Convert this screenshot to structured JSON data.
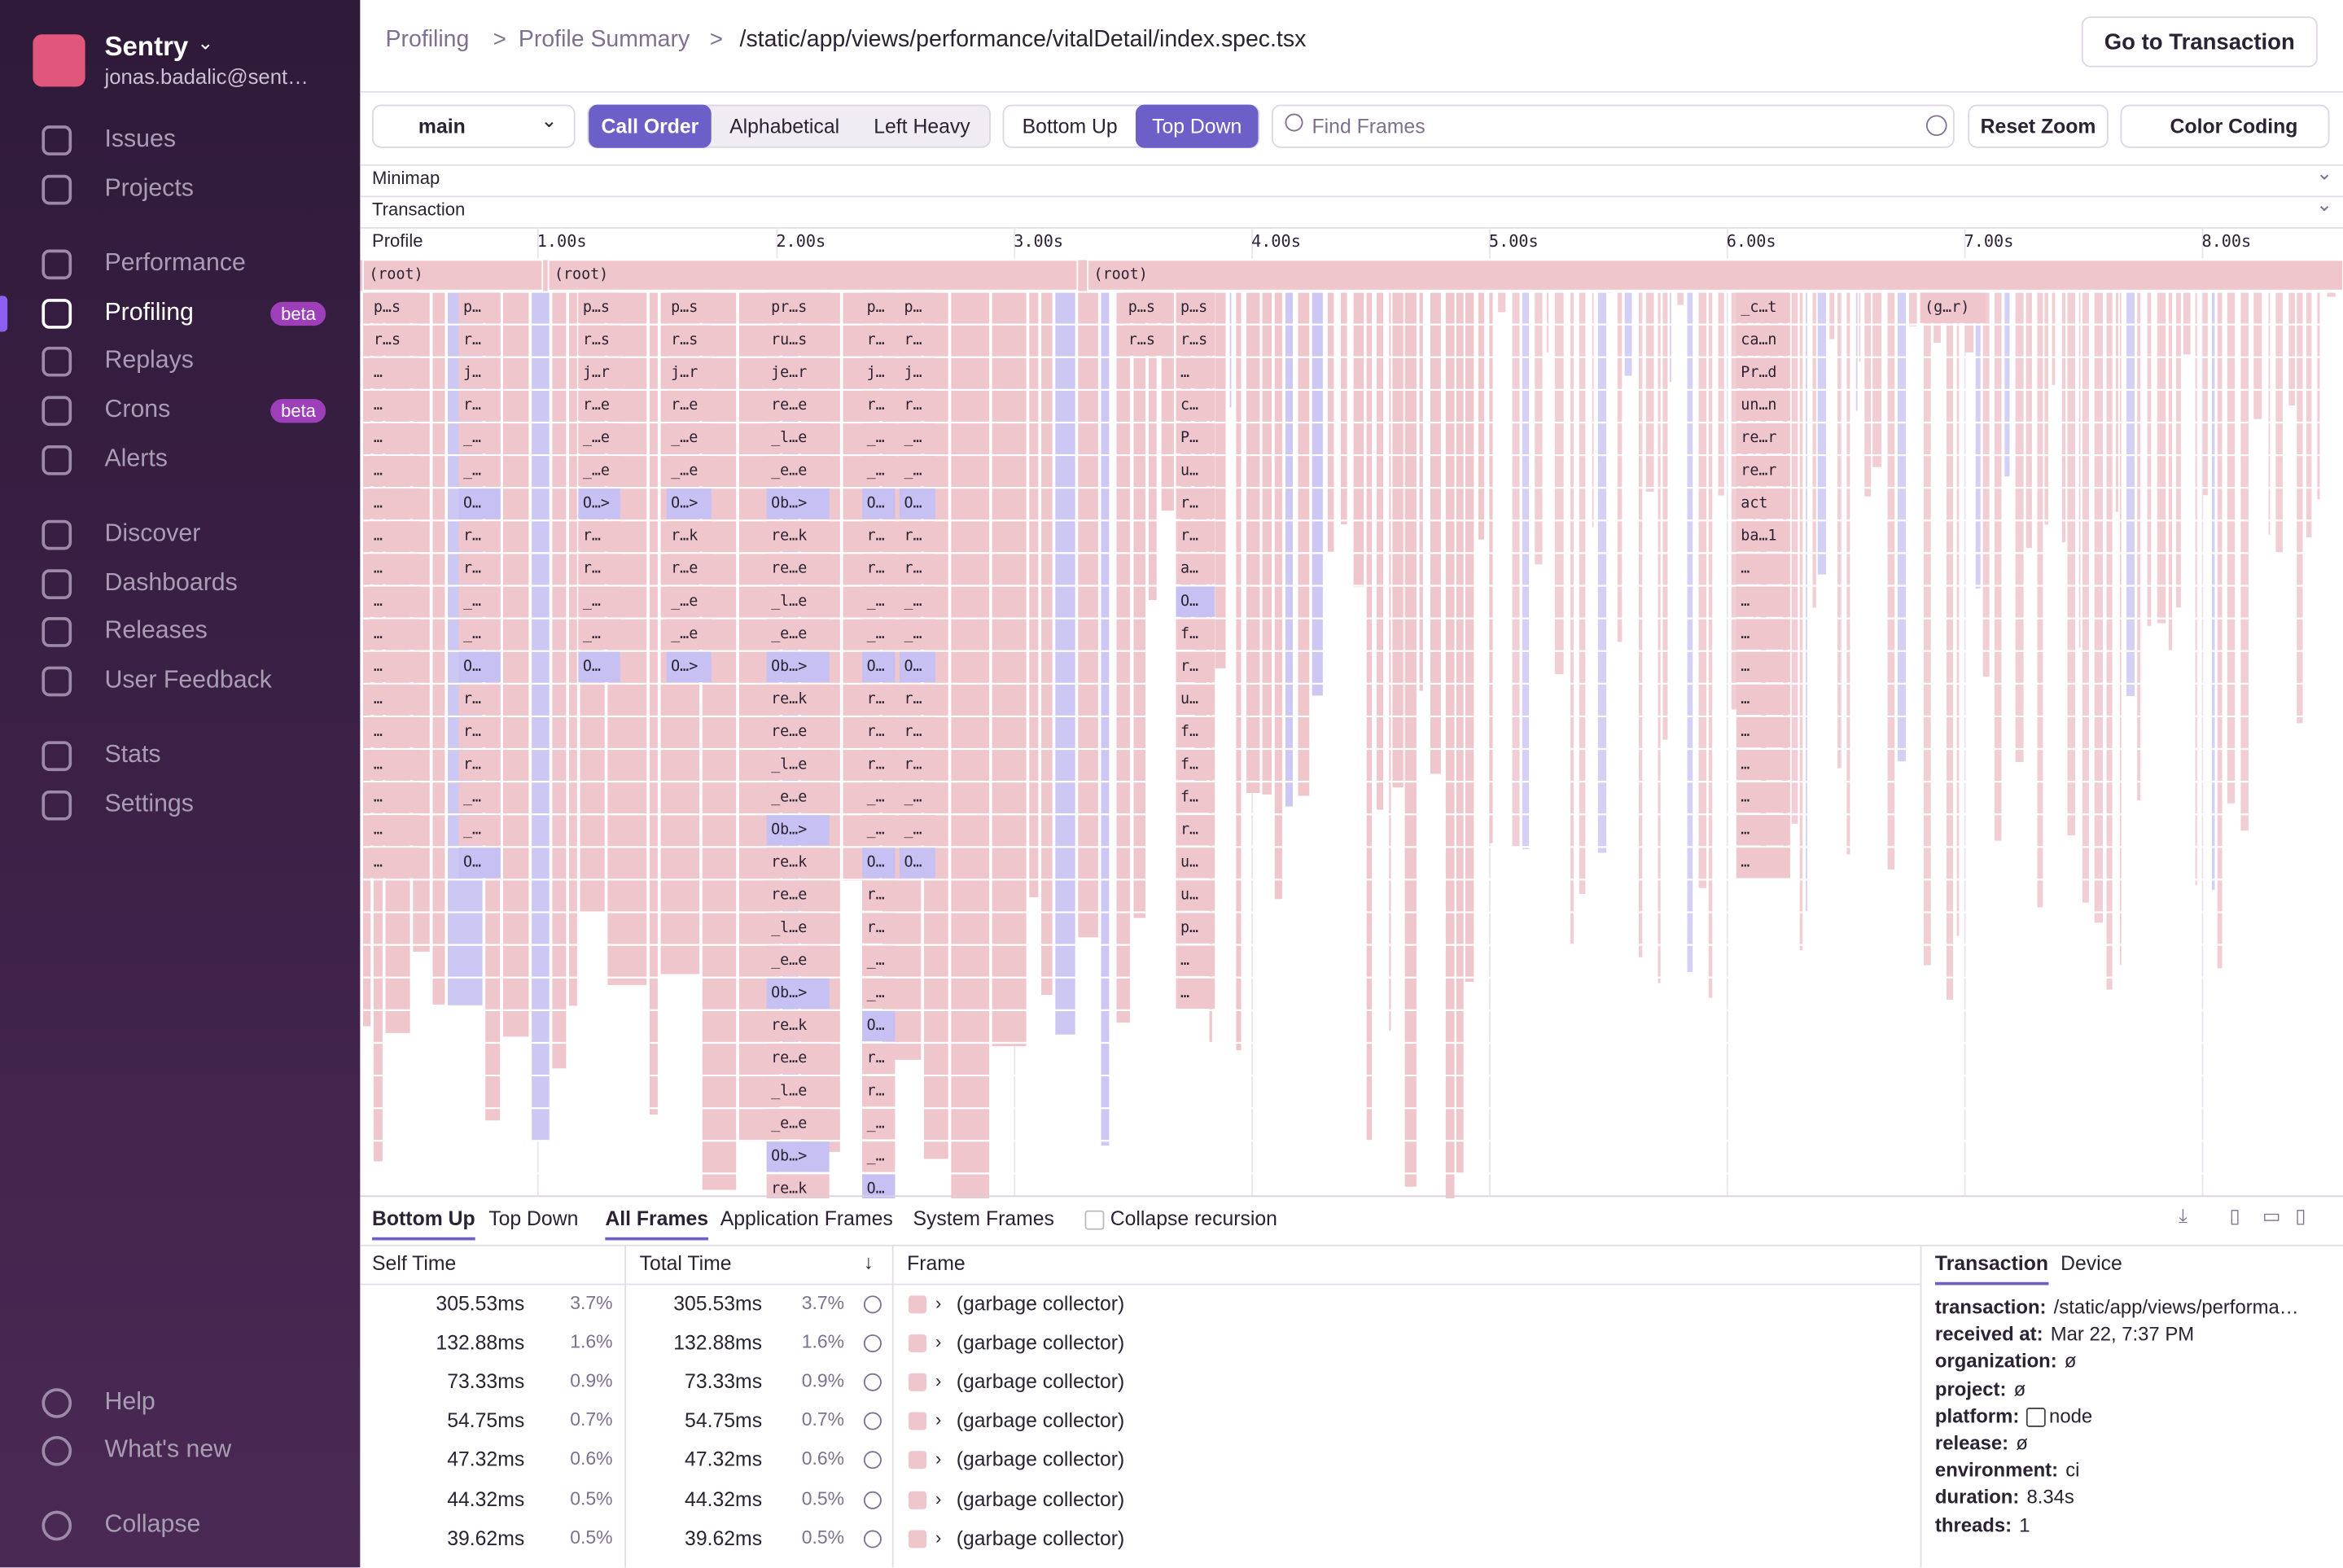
{
  "sidebar": {
    "org": "Sentry",
    "user": "jonas.badalic@sent…",
    "nav": [
      {
        "label": "Issues"
      },
      {
        "label": "Projects"
      },
      {
        "label": "Performance"
      },
      {
        "label": "Profiling",
        "badge": "beta"
      },
      {
        "label": "Replays"
      },
      {
        "label": "Crons",
        "badge": "beta"
      },
      {
        "label": "Alerts"
      },
      {
        "label": "Discover"
      },
      {
        "label": "Dashboards"
      },
      {
        "label": "Releases"
      },
      {
        "label": "User Feedback"
      },
      {
        "label": "Stats"
      },
      {
        "label": "Settings"
      }
    ],
    "footer": [
      "Help",
      "What's new",
      "Collapse"
    ]
  },
  "header": {
    "breadcrumbs": [
      "Profiling",
      "Profile Summary",
      "/static/app/views/performance/vitalDetail/index.spec.tsx"
    ],
    "action": "Go to Transaction"
  },
  "toolbar": {
    "thread": "main",
    "sort": [
      "Call Order",
      "Alphabetical",
      "Left Heavy"
    ],
    "view": [
      "Bottom Up",
      "Top Down"
    ],
    "search_placeholder": "Find Frames",
    "reset": "Reset Zoom",
    "color": "Color Coding"
  },
  "flamegraph": {
    "sections": [
      "Minimap",
      "Transaction",
      "Profile"
    ],
    "axis": [
      "1.00s",
      "2.00s",
      "3.00s",
      "4.00s",
      "5.00s",
      "6.00s",
      "7.00s",
      "8.00s"
    ],
    "roots": [
      "(root)",
      "(root)",
      "(root)"
    ],
    "stacks": [
      [
        "p…s",
        "r…s",
        "…",
        "…",
        "…",
        "…",
        "…",
        "…",
        "…",
        "…",
        "…",
        "…",
        "…",
        "…",
        "…",
        "…",
        "…",
        "…"
      ],
      [
        "p…",
        "r…",
        "j…",
        "r…",
        "_…",
        "_…",
        "O…",
        "r…",
        "r…",
        "_…",
        "_…",
        "O…",
        "r…",
        "r…",
        "r…",
        "_…",
        "_…",
        "O…"
      ],
      [
        "p…s",
        "r…s",
        "j…r",
        "r…e",
        "_…e",
        "_…e",
        "O…>",
        "r…",
        "r…",
        "_…",
        "_…",
        "O…"
      ],
      [
        "p…s",
        "r…s",
        "j…r",
        "r…e",
        "_…e",
        "_…e",
        "O…>",
        "r…k",
        "r…e",
        "_…e",
        "_…e",
        "O…>"
      ],
      [
        "pr…s",
        "ru…s",
        "je…r",
        "re…e",
        "_l…e",
        "_e…e",
        "Ob…>",
        "re…k",
        "re…e",
        "_l…e",
        "_e…e",
        "Ob…>",
        "re…k",
        "re…e",
        "_l…e",
        "_e…e",
        "Ob…>",
        "re…k",
        "re…e",
        "_l…e",
        "_e…e",
        "Ob…>",
        "re…k",
        "re…e",
        "_l…e",
        "_e…e",
        "Ob…>",
        "re…k"
      ],
      [
        "p…",
        "r…",
        "j…",
        "r…",
        "_…",
        "_…",
        "O…",
        "r…",
        "r…",
        "_…",
        "_…",
        "O…",
        "r…",
        "r…",
        "r…",
        "_…",
        "_…",
        "O…",
        "r…",
        "r…",
        "_…",
        "_…",
        "O…",
        "r…",
        "r…",
        "_…",
        "_…",
        "O…"
      ],
      [
        "p…",
        "r…",
        "j…",
        "r…",
        "_…",
        "_…",
        "O…",
        "r…",
        "r…",
        "_…",
        "_…",
        "O…",
        "r…",
        "r…",
        "r…",
        "_…",
        "_…",
        "O…"
      ],
      [
        "p…s",
        "r…s"
      ],
      [
        "p…s",
        "r…s",
        "…",
        "c…",
        "P…",
        "u…",
        "r…",
        "r…",
        "a…",
        "O…",
        "f…",
        "r…",
        "u…",
        "f…",
        "f…",
        "f…",
        "r…",
        "u…",
        "u…",
        "p…",
        "…",
        "…"
      ],
      [
        "_c…t",
        "ca…n",
        "Pr…d",
        "un…n",
        "re…r",
        "re…r",
        "act",
        "ba…1",
        "…",
        "…",
        "…",
        "…",
        "…",
        "…",
        "…",
        "…",
        "…",
        "…"
      ],
      [
        "(g…r)"
      ]
    ]
  },
  "bottom": {
    "tabs": [
      "Bottom Up",
      "Top Down"
    ],
    "filters": [
      "All Frames",
      "Application Frames",
      "System Frames"
    ],
    "collapse": "Collapse recursion",
    "columns": [
      "Self Time",
      "Total Time",
      "Frame"
    ],
    "rows": [
      [
        "305.53ms",
        "3.7%",
        "305.53ms",
        "3.7%",
        "(garbage collector)"
      ],
      [
        "132.88ms",
        "1.6%",
        "132.88ms",
        "1.6%",
        "(garbage collector)"
      ],
      [
        "73.33ms",
        "0.9%",
        "73.33ms",
        "0.9%",
        "(garbage collector)"
      ],
      [
        "54.75ms",
        "0.7%",
        "54.75ms",
        "0.7%",
        "(garbage collector)"
      ],
      [
        "47.32ms",
        "0.6%",
        "47.32ms",
        "0.6%",
        "(garbage collector)"
      ],
      [
        "44.32ms",
        "0.5%",
        "44.32ms",
        "0.5%",
        "(garbage collector)"
      ],
      [
        "39.62ms",
        "0.5%",
        "39.62ms",
        "0.5%",
        "(garbage collector)"
      ]
    ]
  },
  "details": {
    "tabs": [
      "Transaction",
      "Device"
    ],
    "fields": [
      {
        "key": "transaction:",
        "value": "/static/app/views/performa…"
      },
      {
        "key": "received at:",
        "value": "Mar 22, 7:37 PM"
      },
      {
        "key": "organization:",
        "value": "ø"
      },
      {
        "key": "project:",
        "value": "ø"
      },
      {
        "key": "platform:",
        "value": "node"
      },
      {
        "key": "release:",
        "value": "ø"
      },
      {
        "key": "environment:",
        "value": "ci"
      },
      {
        "key": "duration:",
        "value": "8.34s"
      },
      {
        "key": "threads:",
        "value": "1"
      }
    ]
  }
}
